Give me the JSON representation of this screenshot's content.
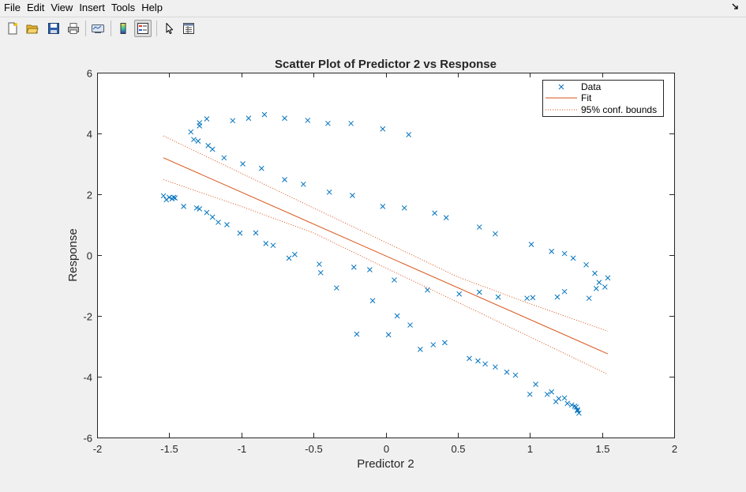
{
  "menu": {
    "items": [
      "File",
      "Edit",
      "View",
      "Insert",
      "Tools",
      "Help"
    ],
    "dock_icon": "dock-arrow-icon"
  },
  "toolbar": {
    "buttons": [
      {
        "name": "new-figure-button",
        "icon": "new-file-icon"
      },
      {
        "name": "open-file-button",
        "icon": "open-folder-icon"
      },
      {
        "name": "save-button",
        "icon": "save-disk-icon"
      },
      {
        "name": "print-button",
        "icon": "printer-icon"
      },
      {
        "name": "link-plot-button",
        "icon": "link-plot-icon"
      },
      {
        "name": "colorbar-button",
        "icon": "colorbar-icon"
      },
      {
        "name": "legend-button",
        "icon": "legend-icon",
        "pressed": true
      },
      {
        "name": "edit-plot-button",
        "icon": "arrow-pointer-icon"
      },
      {
        "name": "property-inspector-button",
        "icon": "property-inspector-icon"
      }
    ]
  },
  "colors": {
    "data": "#0072BD",
    "fit": "#D95319",
    "axes_bg": "#ffffff",
    "figure_bg": "#f0f0f0"
  },
  "chart_data": {
    "type": "scatter",
    "title": "Scatter Plot of Predictor 2 vs Response",
    "xlabel": "Predictor 2",
    "ylabel": "Response",
    "xlim": [
      -2,
      2
    ],
    "ylim": [
      -6,
      6
    ],
    "xticks": [
      "-2",
      "-1.5",
      "-1",
      "-0.5",
      "0",
      "0.5",
      "1",
      "1.5",
      "2"
    ],
    "yticks": [
      "-6",
      "-4",
      "-2",
      "0",
      "2",
      "4",
      "6"
    ],
    "grid": false,
    "legend_position": "top-right",
    "legend": [
      "Data",
      "Fit",
      "95% conf. bounds"
    ],
    "series": [
      {
        "name": "Data",
        "kind": "markers",
        "marker": "x",
        "color": "#0072BD",
        "points": [
          [
            -1.54,
            1.95
          ],
          [
            -1.52,
            1.82
          ],
          [
            -1.5,
            1.9
          ],
          [
            -1.48,
            1.85
          ],
          [
            -1.47,
            1.9
          ],
          [
            -1.46,
            1.88
          ],
          [
            -1.4,
            1.6
          ],
          [
            -1.31,
            1.55
          ],
          [
            -1.29,
            1.52
          ],
          [
            -1.24,
            1.4
          ],
          [
            -1.2,
            1.25
          ],
          [
            -1.16,
            1.08
          ],
          [
            -1.1,
            1.0
          ],
          [
            -1.01,
            0.72
          ],
          [
            -0.9,
            0.73
          ],
          [
            -0.83,
            0.38
          ],
          [
            -0.78,
            0.32
          ],
          [
            -0.67,
            -0.1
          ],
          [
            -0.63,
            0.02
          ],
          [
            -0.46,
            -0.3
          ],
          [
            -0.45,
            -0.58
          ],
          [
            -0.34,
            -1.08
          ],
          [
            -0.22,
            -0.4
          ],
          [
            -0.11,
            -0.48
          ],
          [
            -0.09,
            -1.5
          ],
          [
            -0.2,
            -2.6
          ],
          [
            0.02,
            -2.62
          ],
          [
            0.06,
            -0.82
          ],
          [
            0.08,
            -2.0
          ],
          [
            0.17,
            -2.3
          ],
          [
            0.24,
            -3.1
          ],
          [
            0.33,
            -2.95
          ],
          [
            0.41,
            -2.88
          ],
          [
            0.29,
            -1.15
          ],
          [
            0.51,
            -1.28
          ],
          [
            0.58,
            -3.4
          ],
          [
            0.64,
            -3.48
          ],
          [
            0.65,
            -1.22
          ],
          [
            0.69,
            -3.58
          ],
          [
            0.76,
            -3.68
          ],
          [
            0.78,
            -1.38
          ],
          [
            0.84,
            -3.85
          ],
          [
            0.9,
            -3.95
          ],
          [
            0.98,
            -1.42
          ],
          [
            1.0,
            -4.58
          ],
          [
            1.02,
            -1.4
          ],
          [
            1.04,
            -4.25
          ],
          [
            1.12,
            -4.58
          ],
          [
            1.15,
            -4.5
          ],
          [
            1.18,
            -4.82
          ],
          [
            1.2,
            -4.72
          ],
          [
            1.19,
            -1.38
          ],
          [
            1.24,
            -1.2
          ],
          [
            1.24,
            -4.7
          ],
          [
            1.26,
            -4.88
          ],
          [
            1.29,
            -4.93
          ],
          [
            1.31,
            -4.97
          ],
          [
            1.32,
            -5.0
          ],
          [
            1.33,
            -5.08
          ],
          [
            1.34,
            -5.2
          ],
          [
            1.33,
            -5.12
          ],
          [
            1.41,
            -1.42
          ],
          [
            1.46,
            -1.1
          ],
          [
            1.48,
            -0.9
          ],
          [
            1.52,
            -1.05
          ],
          [
            1.54,
            -0.75
          ],
          [
            1.45,
            -0.6
          ],
          [
            1.39,
            -0.32
          ],
          [
            1.3,
            -0.1
          ],
          [
            1.24,
            0.05
          ],
          [
            1.15,
            0.12
          ],
          [
            1.01,
            0.35
          ],
          [
            0.76,
            0.7
          ],
          [
            0.65,
            0.92
          ],
          [
            0.42,
            1.23
          ],
          [
            0.34,
            1.38
          ],
          [
            0.13,
            1.55
          ],
          [
            -0.02,
            1.6
          ],
          [
            -0.23,
            1.96
          ],
          [
            -0.39,
            2.07
          ],
          [
            -0.57,
            2.33
          ],
          [
            -0.7,
            2.48
          ],
          [
            -0.86,
            2.85
          ],
          [
            -0.99,
            3.0
          ],
          [
            -1.12,
            3.2
          ],
          [
            -1.2,
            3.48
          ],
          [
            -1.23,
            3.6
          ],
          [
            -1.3,
            3.75
          ],
          [
            -1.33,
            3.8
          ],
          [
            -1.35,
            4.05
          ],
          [
            -1.29,
            4.25
          ],
          [
            -1.29,
            4.35
          ],
          [
            -1.24,
            4.48
          ],
          [
            -1.06,
            4.42
          ],
          [
            -0.95,
            4.5
          ],
          [
            -0.84,
            4.62
          ],
          [
            -0.7,
            4.5
          ],
          [
            -0.54,
            4.43
          ],
          [
            -0.4,
            4.33
          ],
          [
            -0.24,
            4.33
          ],
          [
            -0.02,
            4.15
          ],
          [
            0.16,
            3.96
          ]
        ]
      },
      {
        "name": "Fit",
        "kind": "line",
        "color": "#D95319",
        "style": "solid",
        "points": [
          [
            -1.54,
            3.2
          ],
          [
            1.54,
            -3.25
          ]
        ]
      },
      {
        "name": "95% conf. bounds",
        "kind": "line",
        "color": "#D95319",
        "style": "dotted",
        "points": [
          [
            -1.54,
            3.92
          ],
          [
            -0.5,
            1.55
          ],
          [
            0,
            0.42
          ],
          [
            0.5,
            -0.72
          ],
          [
            1.0,
            -1.6
          ],
          [
            1.54,
            -2.5
          ]
        ]
      },
      {
        "name": "95% conf. bounds",
        "kind": "line",
        "color": "#D95319",
        "style": "dotted",
        "points": [
          [
            -1.54,
            2.48
          ],
          [
            -1.0,
            1.6
          ],
          [
            -0.5,
            0.73
          ],
          [
            0,
            -0.42
          ],
          [
            0.5,
            -1.55
          ],
          [
            1.54,
            -3.92
          ]
        ]
      }
    ]
  }
}
